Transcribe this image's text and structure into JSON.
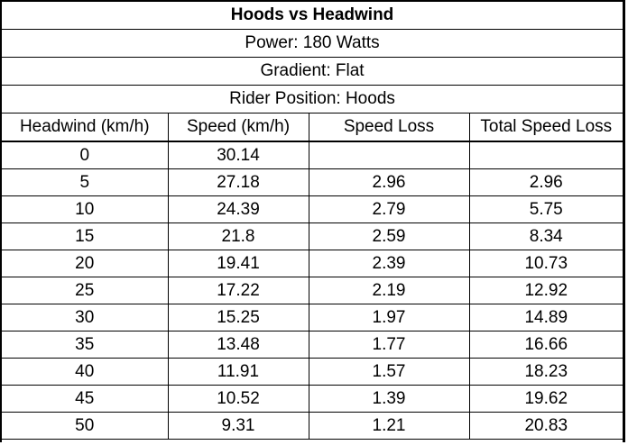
{
  "chart_data": {
    "type": "table",
    "title": "Hoods vs Headwind",
    "subtitles": [
      "Power: 180 Watts",
      "Gradient: Flat",
      "Rider Position: Hoods"
    ],
    "columns": [
      "Headwind (km/h)",
      "Speed (km/h)",
      "Speed Loss",
      "Total Speed Loss"
    ],
    "rows": [
      [
        "0",
        "30.14",
        "",
        ""
      ],
      [
        "5",
        "27.18",
        "2.96",
        "2.96"
      ],
      [
        "10",
        "24.39",
        "2.79",
        "5.75"
      ],
      [
        "15",
        "21.8",
        "2.59",
        "8.34"
      ],
      [
        "20",
        "19.41",
        "2.39",
        "10.73"
      ],
      [
        "25",
        "17.22",
        "2.19",
        "12.92"
      ],
      [
        "30",
        "15.25",
        "1.97",
        "14.89"
      ],
      [
        "35",
        "13.48",
        "1.77",
        "16.66"
      ],
      [
        "40",
        "11.91",
        "1.57",
        "18.23"
      ],
      [
        "45",
        "10.52",
        "1.39",
        "19.62"
      ],
      [
        "50",
        "9.31",
        "1.21",
        "20.83"
      ]
    ]
  }
}
